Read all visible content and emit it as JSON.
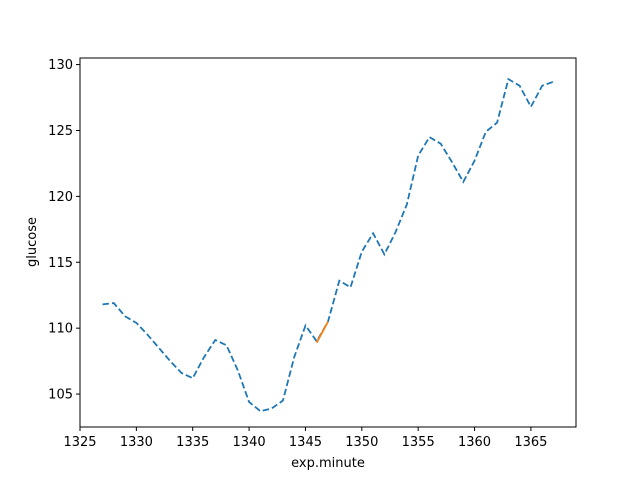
{
  "chart_data": {
    "type": "line",
    "title": "",
    "xlabel": "exp.minute",
    "ylabel": "glucose",
    "xlim": [
      1325,
      1369
    ],
    "ylim": [
      102.5,
      130.5
    ],
    "xticks": [
      1325,
      1330,
      1335,
      1340,
      1345,
      1350,
      1355,
      1360,
      1365
    ],
    "yticks": [
      105,
      110,
      115,
      120,
      125,
      130
    ],
    "grid": false,
    "legend": "none",
    "series": [
      {
        "color": "#1f77b4",
        "linestyle": "dashed",
        "x": [
          1327,
          1328,
          1329,
          1330,
          1331,
          1332,
          1333,
          1334,
          1335,
          1336,
          1337,
          1338,
          1339,
          1340,
          1341,
          1342,
          1343,
          1344,
          1345,
          1346,
          1347,
          1348,
          1349,
          1350,
          1351,
          1352,
          1353,
          1354,
          1355,
          1356,
          1357,
          1358,
          1359,
          1360,
          1361,
          1362,
          1363,
          1364,
          1365,
          1366,
          1367
        ],
        "y": [
          111.8,
          111.9,
          110.9,
          110.4,
          109.5,
          108.5,
          107.5,
          106.6,
          106.2,
          107.8,
          109.1,
          108.7,
          106.8,
          104.4,
          103.7,
          103.9,
          104.5,
          107.8,
          110.2,
          109.0,
          110.5,
          113.6,
          113.1,
          115.8,
          117.2,
          115.6,
          117.3,
          119.4,
          123.1,
          124.5,
          124.0,
          122.6,
          121.1,
          122.7,
          124.9,
          125.6,
          128.9,
          128.4,
          126.8,
          128.4,
          128.7
        ]
      },
      {
        "color": "#ff7f0e",
        "linestyle": "solid",
        "x": [
          1346,
          1347
        ],
        "y": [
          108.9,
          110.5
        ]
      }
    ]
  }
}
